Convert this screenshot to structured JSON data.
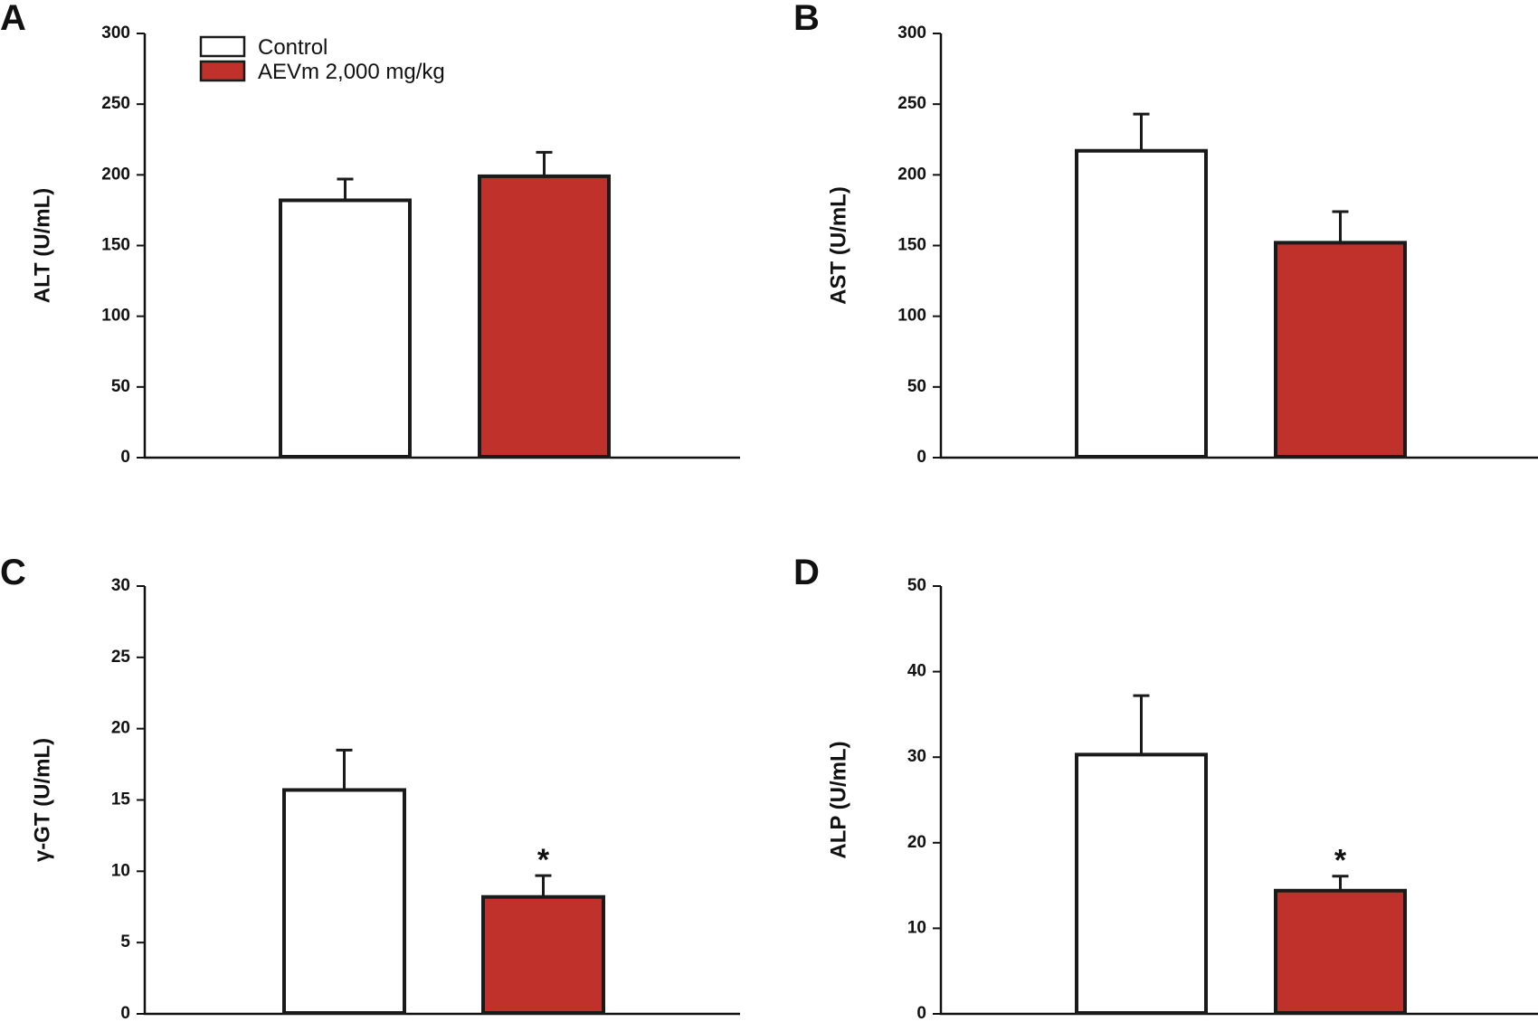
{
  "figure": {
    "legend": {
      "entries": [
        {
          "label": "Control",
          "color": "#ffffff"
        },
        {
          "label": "AEVm 2,000 mg/kg",
          "color": "#c0312b"
        }
      ]
    },
    "colors": {
      "control": "#ffffff",
      "treated": "#c0312b",
      "stroke": "#1a1a1a"
    }
  },
  "chart_data": [
    {
      "panel": "A",
      "type": "bar",
      "ylabel": "ALT (U/mL)",
      "ylim": [
        0,
        300
      ],
      "yticks": [
        0,
        50,
        100,
        150,
        200,
        250,
        300
      ],
      "categories": [
        "Control",
        "AEVm 2,000 mg/kg"
      ],
      "values": [
        182,
        199
      ],
      "errors": [
        15,
        17
      ],
      "significance": [
        "",
        ""
      ]
    },
    {
      "panel": "B",
      "type": "bar",
      "ylabel": "AST (U/mL)",
      "ylim": [
        0,
        300
      ],
      "yticks": [
        0,
        50,
        100,
        150,
        200,
        250,
        300
      ],
      "categories": [
        "Control",
        "AEVm 2,000 mg/kg"
      ],
      "values": [
        217,
        152
      ],
      "errors": [
        26,
        22
      ],
      "significance": [
        "",
        ""
      ]
    },
    {
      "panel": "C",
      "type": "bar",
      "ylabel": "γ-GT (U/mL)",
      "ylim": [
        0,
        30
      ],
      "yticks": [
        0,
        5,
        10,
        15,
        20,
        25,
        30
      ],
      "categories": [
        "Control",
        "AEVm 2,000 mg/kg"
      ],
      "values": [
        15.7,
        8.2
      ],
      "errors": [
        2.8,
        1.5
      ],
      "significance": [
        "",
        "*"
      ]
    },
    {
      "panel": "D",
      "type": "bar",
      "ylabel": "ALP (U/mL)",
      "ylim": [
        0,
        50
      ],
      "yticks": [
        0,
        10,
        20,
        30,
        40,
        50
      ],
      "categories": [
        "Control",
        "AEVm 2,000 mg/kg"
      ],
      "values": [
        30.3,
        14.4
      ],
      "errors": [
        6.9,
        1.7
      ],
      "significance": [
        "",
        "*"
      ]
    }
  ]
}
